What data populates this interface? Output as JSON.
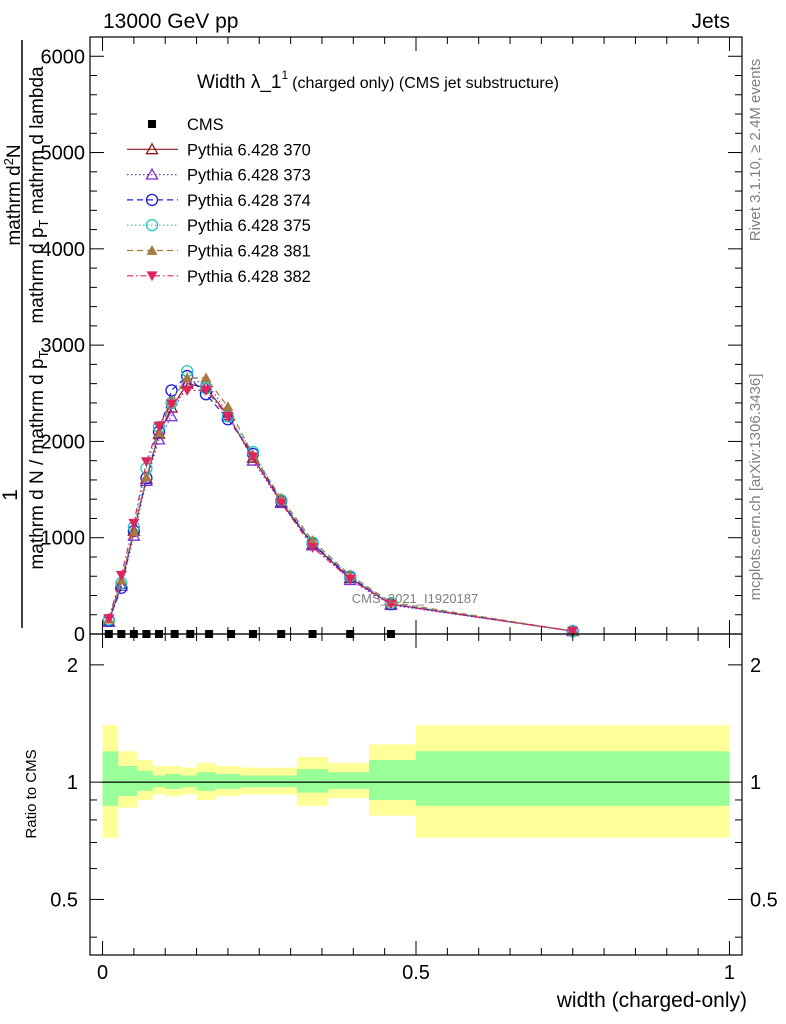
{
  "header": {
    "energy_label": "13000 GeV pp",
    "process_label": "Jets"
  },
  "side_labels": {
    "rivet": "Rivet 3.1.10, ≥ 2.4M events",
    "mcplots": "mcplots.cern.ch [arXiv:1306.3436]"
  },
  "watermark": "CMS_2021_I1920187",
  "main_ylabel": {
    "numerator_prefix": "1",
    "denominator": "mathrm d N / mathrm d p",
    "denominator_sub": "T",
    "frac_top": "mathrm d",
    "frac_top_sup": "2",
    "frac_top_rest": "N",
    "frac_bottom": "mathrm d p",
    "frac_bottom_sub": "T",
    "frac_bottom_rest": " mathrm d lambda"
  },
  "ratio_ylabel": "Ratio to CMS",
  "xlabel": "width (charged-only)",
  "chart_data": [
    {
      "type": "line",
      "title_main": "Width λ_1",
      "title_sup": "1",
      "title_rest": "(charged only) (CMS jet substructure)",
      "xlim": [
        -0.02,
        1.02
      ],
      "ylim": [
        0,
        6200
      ],
      "yticks": [
        {
          "v": 0,
          "label": "0"
        },
        {
          "v": 1000,
          "label": "1000"
        },
        {
          "v": 2000,
          "label": "2000"
        },
        {
          "v": 3000,
          "label": "3000"
        },
        {
          "v": 4000,
          "label": "4000"
        },
        {
          "v": 5000,
          "label": "5000"
        },
        {
          "v": 6000,
          "label": "6000"
        }
      ],
      "legend_position": "top-left",
      "series": [
        {
          "name": "CMS",
          "color": "#000000",
          "marker": "square",
          "dash": "none",
          "x": [
            0.01,
            0.03,
            0.05,
            0.07,
            0.09,
            0.115,
            0.14,
            0.17,
            0.205,
            0.24,
            0.285,
            0.335,
            0.395,
            0.46
          ],
          "y": [
            0,
            0,
            0,
            0,
            0,
            0,
            0,
            0,
            0,
            0,
            0,
            0,
            0,
            0
          ]
        },
        {
          "name": "Pythia 6.428 370",
          "color": "#8b1a1a",
          "marker": "triangle-open",
          "dash": "solid",
          "x": [
            0.01,
            0.03,
            0.05,
            0.07,
            0.09,
            0.11,
            0.135,
            0.165,
            0.2,
            0.24,
            0.285,
            0.335,
            0.395,
            0.46,
            0.75
          ],
          "y": [
            130,
            520,
            1070,
            1610,
            2080,
            2350,
            2600,
            2560,
            2270,
            1830,
            1370,
            930,
            580,
            310,
            30
          ]
        },
        {
          "name": "Pythia 6.428 373",
          "color": "#7b2fd6",
          "marker": "triangle-open",
          "dash": "dot",
          "x": [
            0.01,
            0.03,
            0.05,
            0.07,
            0.09,
            0.11,
            0.135,
            0.165,
            0.2,
            0.24,
            0.285,
            0.335,
            0.395,
            0.46,
            0.75
          ],
          "y": [
            125,
            500,
            1020,
            1590,
            2020,
            2260,
            2620,
            2620,
            2290,
            1800,
            1360,
            920,
            560,
            300,
            30
          ]
        },
        {
          "name": "Pythia 6.428 374",
          "color": "#1c1cd8",
          "marker": "circle-open",
          "dash": "dash",
          "x": [
            0.01,
            0.03,
            0.05,
            0.07,
            0.09,
            0.11,
            0.135,
            0.165,
            0.2,
            0.24,
            0.285,
            0.335,
            0.395,
            0.46,
            0.75
          ],
          "y": [
            140,
            480,
            1070,
            1620,
            2100,
            2530,
            2680,
            2490,
            2230,
            1870,
            1380,
            940,
            590,
            310,
            30
          ]
        },
        {
          "name": "Pythia 6.428 375",
          "color": "#22c9c0",
          "marker": "circle-open",
          "dash": "dot",
          "x": [
            0.01,
            0.03,
            0.05,
            0.07,
            0.09,
            0.11,
            0.135,
            0.165,
            0.2,
            0.24,
            0.285,
            0.335,
            0.395,
            0.46,
            0.75
          ],
          "y": [
            150,
            530,
            1110,
            1720,
            2150,
            2400,
            2730,
            2550,
            2260,
            1890,
            1390,
            950,
            600,
            320,
            30
          ]
        },
        {
          "name": "Pythia 6.428 381",
          "color": "#a87a40",
          "marker": "triangle-filled",
          "dash": "dash",
          "x": [
            0.01,
            0.03,
            0.05,
            0.07,
            0.09,
            0.11,
            0.135,
            0.165,
            0.2,
            0.24,
            0.285,
            0.335,
            0.395,
            0.46,
            0.75
          ],
          "y": [
            155,
            560,
            1060,
            1630,
            2090,
            2420,
            2660,
            2660,
            2360,
            1860,
            1410,
            970,
            610,
            330,
            30
          ]
        },
        {
          "name": "Pythia 6.428 382",
          "color": "#e0245e",
          "marker": "triangle-down-filled",
          "dash": "dashdot",
          "x": [
            0.01,
            0.03,
            0.05,
            0.07,
            0.09,
            0.11,
            0.135,
            0.165,
            0.2,
            0.24,
            0.285,
            0.335,
            0.395,
            0.46,
            0.75
          ],
          "y": [
            160,
            610,
            1150,
            1790,
            2160,
            2390,
            2530,
            2530,
            2260,
            1840,
            1360,
            900,
            570,
            310,
            30
          ]
        }
      ]
    },
    {
      "type": "area",
      "title": "",
      "xlim": [
        -0.02,
        1.02
      ],
      "ylim": [
        0.36,
        2.4
      ],
      "yscale": "log",
      "yticks": [
        {
          "v": 0.5,
          "label": "0.5"
        },
        {
          "v": 1,
          "label": "1"
        },
        {
          "v": 2,
          "label": "2"
        }
      ],
      "xticks": [
        {
          "v": 0,
          "label": "0"
        },
        {
          "v": 0.5,
          "label": "0.5"
        },
        {
          "v": 1,
          "label": "1"
        }
      ],
      "reference_line": 1,
      "bands": [
        {
          "x0": 0.0,
          "x1": 0.025,
          "yel": [
            0.72,
            1.4
          ],
          "grn": [
            0.87,
            1.2
          ]
        },
        {
          "x0": 0.025,
          "x1": 0.055,
          "yel": [
            0.86,
            1.2
          ],
          "grn": [
            0.92,
            1.1
          ]
        },
        {
          "x0": 0.055,
          "x1": 0.08,
          "yel": [
            0.9,
            1.14
          ],
          "grn": [
            0.95,
            1.07
          ]
        },
        {
          "x0": 0.08,
          "x1": 0.1,
          "yel": [
            0.93,
            1.1
          ],
          "grn": [
            0.97,
            1.04
          ]
        },
        {
          "x0": 0.1,
          "x1": 0.125,
          "yel": [
            0.92,
            1.1
          ],
          "grn": [
            0.96,
            1.05
          ]
        },
        {
          "x0": 0.125,
          "x1": 0.15,
          "yel": [
            0.93,
            1.09
          ],
          "grn": [
            0.97,
            1.04
          ]
        },
        {
          "x0": 0.15,
          "x1": 0.18,
          "yel": [
            0.9,
            1.12
          ],
          "grn": [
            0.95,
            1.06
          ]
        },
        {
          "x0": 0.18,
          "x1": 0.22,
          "yel": [
            0.92,
            1.1
          ],
          "grn": [
            0.96,
            1.05
          ]
        },
        {
          "x0": 0.22,
          "x1": 0.26,
          "yel": [
            0.93,
            1.09
          ],
          "grn": [
            0.97,
            1.04
          ]
        },
        {
          "x0": 0.26,
          "x1": 0.31,
          "yel": [
            0.93,
            1.09
          ],
          "grn": [
            0.97,
            1.04
          ]
        },
        {
          "x0": 0.31,
          "x1": 0.36,
          "yel": [
            0.87,
            1.16
          ],
          "grn": [
            0.94,
            1.08
          ]
        },
        {
          "x0": 0.36,
          "x1": 0.425,
          "yel": [
            0.91,
            1.12
          ],
          "grn": [
            0.96,
            1.06
          ]
        },
        {
          "x0": 0.425,
          "x1": 0.5,
          "yel": [
            0.82,
            1.25
          ],
          "grn": [
            0.9,
            1.14
          ]
        },
        {
          "x0": 0.5,
          "x1": 1.0,
          "yel": [
            0.72,
            1.4
          ],
          "grn": [
            0.87,
            1.2
          ]
        }
      ]
    }
  ]
}
